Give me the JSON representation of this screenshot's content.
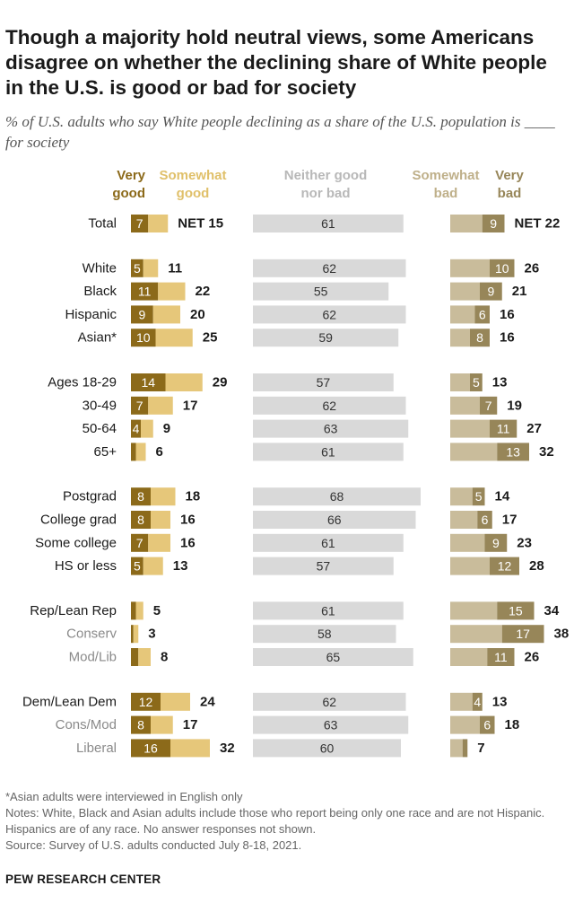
{
  "header": {
    "title": "Though a majority hold neutral views, some Americans disagree on whether the declining share of White people in the U.S. is good or bad for society",
    "subtitle": "% of U.S. adults who say White people declining as a share of the U.S. population is ____ for society"
  },
  "chart_data": {
    "type": "bar",
    "orientation": "horizontal-stacked-diverging",
    "columns": {
      "very_good": [
        "Very",
        "good"
      ],
      "somewhat_good": [
        "Somewhat",
        "good"
      ],
      "neither": [
        "Neither good",
        "nor bad"
      ],
      "somewhat_bad": [
        "Somewhat",
        "bad"
      ],
      "very_bad": [
        "Very",
        "bad"
      ]
    },
    "colors": {
      "very_good": "#8c6a1a",
      "somewhat_good": "#e6c77a",
      "neither": "#d9d9d9",
      "somewhat_bad": "#c9bc9b",
      "very_bad": "#978659",
      "label_dark": "#1a1a1a",
      "label_muted": "#8a8a8a",
      "hdr_very_good": "#8c6a1a",
      "hdr_somewhat_good": "#e0c06a",
      "hdr_neither": "#b8b8b8",
      "hdr_somewhat_bad": "#bfb08a",
      "hdr_very_bad": "#978659"
    },
    "groups": [
      {
        "rows": [
          {
            "label": "Total",
            "muted": false,
            "very_good": 7,
            "somewhat_good": 8,
            "net_good": "NET 15",
            "neither": 61,
            "somewhat_bad": 13,
            "very_bad": 9,
            "net_bad": "NET 22"
          }
        ]
      },
      {
        "rows": [
          {
            "label": "White",
            "muted": false,
            "very_good": 5,
            "somewhat_good": 6,
            "net_good": "11",
            "neither": 62,
            "somewhat_bad": 16,
            "very_bad": 10,
            "net_bad": "26"
          },
          {
            "label": "Black",
            "muted": false,
            "very_good": 11,
            "somewhat_good": 11,
            "net_good": "22",
            "neither": 55,
            "somewhat_bad": 12,
            "very_bad": 9,
            "net_bad": "21"
          },
          {
            "label": "Hispanic",
            "muted": false,
            "very_good": 9,
            "somewhat_good": 11,
            "net_good": "20",
            "neither": 62,
            "somewhat_bad": 10,
            "very_bad": 6,
            "net_bad": "16"
          },
          {
            "label": "Asian*",
            "muted": false,
            "very_good": 10,
            "somewhat_good": 15,
            "net_good": "25",
            "neither": 59,
            "somewhat_bad": 8,
            "very_bad": 8,
            "net_bad": "16"
          }
        ]
      },
      {
        "rows": [
          {
            "label": "Ages 18-29",
            "muted": false,
            "very_good": 14,
            "somewhat_good": 15,
            "net_good": "29",
            "neither": 57,
            "somewhat_bad": 8,
            "very_bad": 5,
            "net_bad": "13"
          },
          {
            "label": "30-49",
            "muted": false,
            "very_good": 7,
            "somewhat_good": 10,
            "net_good": "17",
            "neither": 62,
            "somewhat_bad": 12,
            "very_bad": 7,
            "net_bad": "19"
          },
          {
            "label": "50-64",
            "muted": false,
            "very_good": 4,
            "somewhat_good": 5,
            "net_good": "9",
            "neither": 63,
            "somewhat_bad": 16,
            "very_bad": 11,
            "net_bad": "27"
          },
          {
            "label": "65+",
            "muted": false,
            "very_good": 2,
            "somewhat_good": 4,
            "net_good": "6",
            "neither": 61,
            "somewhat_bad": 19,
            "very_bad": 13,
            "net_bad": "32"
          }
        ]
      },
      {
        "rows": [
          {
            "label": "Postgrad",
            "muted": false,
            "very_good": 8,
            "somewhat_good": 10,
            "net_good": "18",
            "neither": 68,
            "somewhat_bad": 9,
            "very_bad": 5,
            "net_bad": "14"
          },
          {
            "label": "College grad",
            "muted": false,
            "very_good": 8,
            "somewhat_good": 8,
            "net_good": "16",
            "neither": 66,
            "somewhat_bad": 11,
            "very_bad": 6,
            "net_bad": "17"
          },
          {
            "label": "Some college",
            "muted": false,
            "very_good": 7,
            "somewhat_good": 9,
            "net_good": "16",
            "neither": 61,
            "somewhat_bad": 14,
            "very_bad": 9,
            "net_bad": "23"
          },
          {
            "label": "HS or less",
            "muted": false,
            "very_good": 5,
            "somewhat_good": 8,
            "net_good": "13",
            "neither": 57,
            "somewhat_bad": 16,
            "very_bad": 12,
            "net_bad": "28"
          }
        ]
      },
      {
        "rows": [
          {
            "label": "Rep/Lean Rep",
            "muted": false,
            "very_good": 2,
            "somewhat_good": 3,
            "net_good": "5",
            "neither": 61,
            "somewhat_bad": 19,
            "very_bad": 15,
            "net_bad": "34"
          },
          {
            "label": "Conserv",
            "muted": true,
            "very_good": 1,
            "somewhat_good": 2,
            "net_good": "3",
            "neither": 58,
            "somewhat_bad": 21,
            "very_bad": 17,
            "net_bad": "38"
          },
          {
            "label": "Mod/Lib",
            "muted": true,
            "very_good": 3,
            "somewhat_good": 5,
            "net_good": "8",
            "neither": 65,
            "somewhat_bad": 15,
            "very_bad": 11,
            "net_bad": "26"
          }
        ]
      },
      {
        "rows": [
          {
            "label": "Dem/Lean Dem",
            "muted": false,
            "very_good": 12,
            "somewhat_good": 12,
            "net_good": "24",
            "neither": 62,
            "somewhat_bad": 9,
            "very_bad": 4,
            "net_bad": "13"
          },
          {
            "label": "Cons/Mod",
            "muted": true,
            "very_good": 8,
            "somewhat_good": 9,
            "net_good": "17",
            "neither": 63,
            "somewhat_bad": 12,
            "very_bad": 6,
            "net_bad": "18"
          },
          {
            "label": "Liberal",
            "muted": true,
            "very_good": 16,
            "somewhat_good": 16,
            "net_good": "32",
            "neither": 60,
            "somewhat_bad": 5,
            "very_bad": 2,
            "net_bad": "7"
          }
        ]
      }
    ]
  },
  "footer": {
    "note1": "*Asian adults were interviewed in English only",
    "note2": "Notes: White, Black and Asian adults include those who report being only one race and are not Hispanic. Hispanics are of any race. No answer responses not shown.",
    "source": "Source: Survey of U.S. adults conducted July 8-18, 2021.",
    "org": "PEW RESEARCH CENTER"
  }
}
